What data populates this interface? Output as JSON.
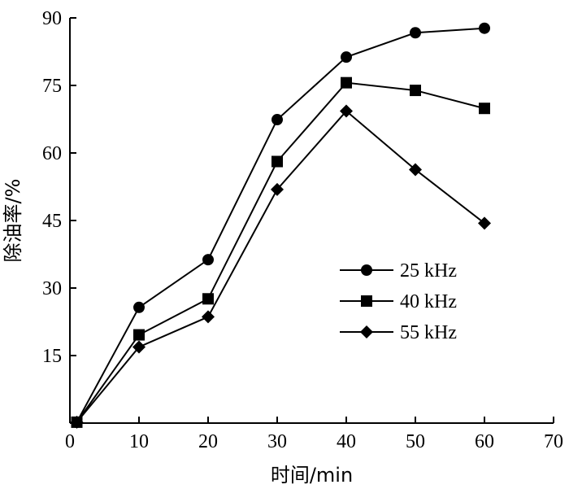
{
  "chart_data": {
    "type": "line",
    "xlabel": "时间/min",
    "ylabel": "除油率/%",
    "xlim": [
      0,
      70
    ],
    "ylim": [
      0,
      90
    ],
    "x_ticks": [
      "0",
      "10",
      "20",
      "30",
      "40",
      "50",
      "60",
      "70"
    ],
    "y_ticks": [
      "15",
      "30",
      "45",
      "60",
      "75",
      "90"
    ],
    "grid": false,
    "legend_position": "center-right",
    "x": [
      1,
      10,
      20,
      30,
      40,
      50,
      60
    ],
    "series": [
      {
        "name": "25 kHz",
        "marker": "circle",
        "values": [
          0.2,
          25.7,
          36.3,
          67.4,
          81.3,
          86.7,
          87.7
        ]
      },
      {
        "name": "40 kHz",
        "marker": "square",
        "values": [
          0.2,
          19.6,
          27.6,
          58.1,
          75.6,
          73.9,
          69.9
        ]
      },
      {
        "name": "55 kHz",
        "marker": "diamond",
        "values": [
          0.2,
          16.9,
          23.6,
          51.9,
          69.3,
          56.3,
          44.4
        ]
      }
    ],
    "colors": {
      "line": "#000000",
      "marker": "#000000",
      "axis": "#000000"
    }
  }
}
